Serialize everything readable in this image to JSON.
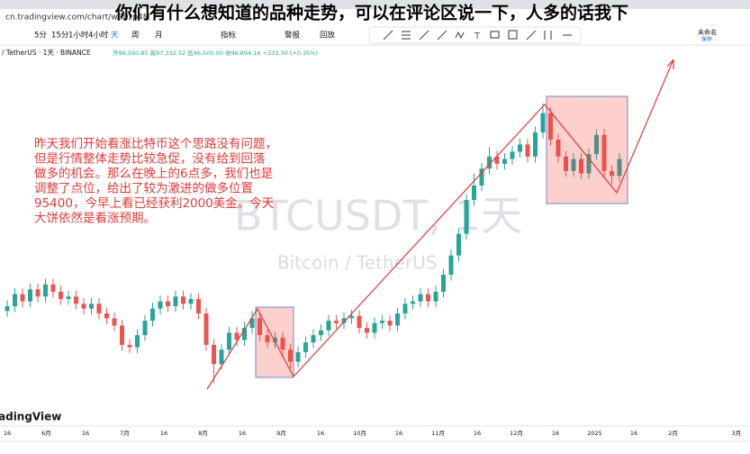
{
  "browser": {
    "url": "cn.tradingview.com/chart/wB0zp4M"
  },
  "caption": "你们有什么想知道的品种走势，可以在评论区说一下，人多的话我下",
  "toolbar": {
    "intervals": [
      "5分",
      "15分",
      "1小时",
      "4小时",
      "天",
      "周",
      "月"
    ],
    "indicators": "指标",
    "alert": "警报",
    "replay": "回放",
    "layout_name": "未命名",
    "save": "保存"
  },
  "symbol": {
    "name": "/ TetherUS · 1天 · BINANCE",
    "ohlc": "开96,560.85 高97,332.52 低96,500.00 收96,894.16 +333.30 (+0.35%)"
  },
  "watermark": {
    "title": "BTCUSDT, 1天",
    "subtitle": "Bitcoin / TetherUS"
  },
  "logo": "adingView",
  "annotation": [
    "昨天我们开始看涨比特币这个思路没有问题，",
    "但是行情整体走势比较急促，没有给到回落",
    "做多的机会。那么在晚上的6点多，我们也是",
    "调整了点位，给出了较为激进的做多位置",
    "95400，今早上看已经获利2000美金。今天",
    "大饼依然是看涨预期。"
  ],
  "chart_data": {
    "type": "candlestick",
    "x_labels": [
      "16",
      "6月",
      "16",
      "7月",
      "16",
      "8月",
      "16",
      "9月",
      "16",
      "10月",
      "16",
      "11月",
      "16",
      "12月",
      "16",
      "2025",
      "16",
      "2月",
      "3月"
    ],
    "ylim": [
      38000,
      114500
    ],
    "up_color": "#26a69a",
    "down_color": "#ef5350",
    "ohlc": [
      [
        65000,
        67200,
        63800,
        66000
      ],
      [
        66000,
        69700,
        64800,
        68500
      ],
      [
        68500,
        69700,
        65800,
        67000
      ],
      [
        67000,
        70700,
        65800,
        69500
      ],
      [
        69500,
        70700,
        66800,
        68000
      ],
      [
        68000,
        71700,
        66800,
        70500
      ],
      [
        70500,
        71700,
        67800,
        69000
      ],
      [
        69000,
        70200,
        66300,
        67500
      ],
      [
        67500,
        69200,
        66300,
        68000
      ],
      [
        68000,
        69200,
        65300,
        66500
      ],
      [
        66500,
        67700,
        64300,
        65500
      ],
      [
        65500,
        67700,
        64300,
        66500
      ],
      [
        66500,
        67700,
        63300,
        64500
      ],
      [
        64500,
        65700,
        62300,
        63500
      ],
      [
        63500,
        64700,
        60800,
        62000
      ],
      [
        62000,
        63200,
        56800,
        58000
      ],
      [
        58000,
        59200,
        56300,
        57500
      ],
      [
        57500,
        61200,
        56300,
        60000
      ],
      [
        60000,
        64200,
        58800,
        63000
      ],
      [
        63000,
        66700,
        61800,
        65500
      ],
      [
        65500,
        68200,
        64300,
        67000
      ],
      [
        67000,
        68200,
        64800,
        66000
      ],
      [
        66000,
        69200,
        64800,
        68000
      ],
      [
        68000,
        69200,
        65300,
        66500
      ],
      [
        66500,
        68700,
        65300,
        67500
      ],
      [
        67500,
        68700,
        63300,
        64500
      ],
      [
        64500,
        65700,
        56800,
        58000
      ],
      [
        58000,
        59200,
        50000,
        54000
      ],
      [
        54000,
        58200,
        52800,
        57000
      ],
      [
        57000,
        61700,
        55800,
        60500
      ],
      [
        60500,
        61700,
        57800,
        59000
      ],
      [
        59000,
        62700,
        57800,
        61500
      ],
      [
        61500,
        65000,
        60300,
        63500
      ],
      [
        63500,
        64700,
        58800,
        60000
      ],
      [
        60000,
        61200,
        57300,
        58500
      ],
      [
        58500,
        60700,
        57300,
        59500
      ],
      [
        59500,
        60700,
        55800,
        57000
      ],
      [
        57000,
        58200,
        53000,
        54500
      ],
      [
        54500,
        57700,
        53300,
        56500
      ],
      [
        56500,
        59700,
        55300,
        58500
      ],
      [
        58500,
        61200,
        57300,
        60000
      ],
      [
        60000,
        62200,
        58800,
        61000
      ],
      [
        61000,
        64200,
        59800,
        63000
      ],
      [
        63000,
        64200,
        61300,
        62500
      ],
      [
        62500,
        64700,
        61300,
        63500
      ],
      [
        63500,
        65200,
        62300,
        64000
      ],
      [
        64000,
        65200,
        60300,
        61500
      ],
      [
        61500,
        62700,
        59300,
        60500
      ],
      [
        60500,
        63700,
        59300,
        62500
      ],
      [
        62500,
        64200,
        61300,
        63000
      ],
      [
        63000,
        64200,
        60800,
        62000
      ],
      [
        62000,
        65700,
        60800,
        64500
      ],
      [
        64500,
        67700,
        63300,
        66500
      ],
      [
        66500,
        68200,
        65300,
        67000
      ],
      [
        67000,
        69700,
        65800,
        68500
      ],
      [
        68500,
        69700,
        65800,
        67000
      ],
      [
        67000,
        70200,
        65800,
        69000
      ],
      [
        69000,
        73700,
        67800,
        72500
      ],
      [
        72500,
        77700,
        71300,
        76500
      ],
      [
        76500,
        82200,
        75300,
        81000
      ],
      [
        81000,
        89200,
        79800,
        88000
      ],
      [
        88000,
        93500,
        86800,
        91000
      ],
      [
        91000,
        95700,
        89800,
        94500
      ],
      [
        94500,
        99000,
        93300,
        97000
      ],
      [
        97000,
        98200,
        94300,
        95500
      ],
      [
        95500,
        97700,
        94300,
        96500
      ],
      [
        96500,
        99200,
        95300,
        98000
      ],
      [
        98000,
        100700,
        96800,
        99500
      ],
      [
        99500,
        100700,
        95800,
        97000
      ],
      [
        97000,
        103200,
        95800,
        102000
      ],
      [
        102000,
        108000,
        100800,
        106000
      ],
      [
        106000,
        107200,
        99300,
        100500
      ],
      [
        100500,
        101700,
        95800,
        97000
      ],
      [
        97000,
        98200,
        92800,
        94000
      ],
      [
        94000,
        97700,
        92800,
        96500
      ],
      [
        96500,
        97700,
        92300,
        93500
      ],
      [
        93500,
        98700,
        92300,
        97500
      ],
      [
        97500,
        102700,
        96300,
        101500
      ],
      [
        101500,
        102700,
        92800,
        94000
      ],
      [
        94000,
        95200,
        91200,
        93000
      ],
      [
        93000,
        97700,
        91800,
        96500
      ]
    ]
  }
}
